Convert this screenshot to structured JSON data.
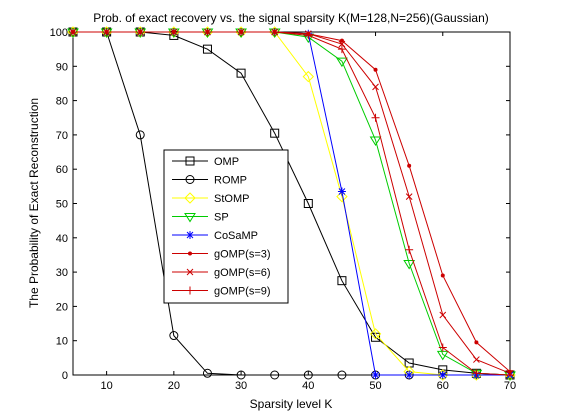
{
  "chart_data": {
    "type": "line",
    "title": "Prob. of exact recovery vs. the signal sparsity K(M=128,N=256)(Gaussian)",
    "xlabel": "Sparsity level K",
    "ylabel": "The Probability of Exact Reconstruction",
    "xlim": [
      5,
      70
    ],
    "ylim": [
      0,
      100
    ],
    "xticks": [
      10,
      20,
      30,
      40,
      50,
      60,
      70
    ],
    "yticks": [
      0,
      10,
      20,
      30,
      40,
      50,
      60,
      70,
      80,
      90,
      100
    ],
    "grid": false,
    "legend_position": "center-left",
    "x": [
      5,
      10,
      15,
      20,
      25,
      30,
      35,
      40,
      45,
      50,
      55,
      60,
      65,
      70
    ],
    "series": [
      {
        "name": "OMP",
        "color": "#000000",
        "marker": "square",
        "values": [
          100,
          100,
          100,
          99,
          95,
          88,
          70.5,
          50,
          27.5,
          11,
          3.5,
          1.5,
          0.5,
          0
        ]
      },
      {
        "name": "ROMP",
        "color": "#000000",
        "marker": "circle",
        "values": [
          100,
          100,
          70,
          11.5,
          0.5,
          0,
          0,
          0,
          0,
          0,
          0,
          0,
          0,
          0
        ]
      },
      {
        "name": "StOMP",
        "color": "#ffff00",
        "marker": "diamond",
        "values": [
          100,
          100,
          100,
          100,
          100,
          100,
          100,
          87,
          52,
          12,
          1,
          0,
          0,
          0
        ]
      },
      {
        "name": "SP",
        "color": "#00cc00",
        "marker": "triangle-down",
        "values": [
          100,
          100,
          100,
          100,
          100,
          100,
          100,
          98.5,
          91.5,
          68.5,
          32.5,
          6,
          0.5,
          0
        ]
      },
      {
        "name": "CoSaMP",
        "color": "#0000ff",
        "marker": "asterisk",
        "values": [
          100,
          100,
          100,
          100,
          100,
          100,
          100,
          99.5,
          53.5,
          0,
          0,
          0,
          0,
          0
        ]
      },
      {
        "name": "gOMP(s=3)",
        "color": "#cc0000",
        "marker": "dot",
        "values": [
          100,
          100,
          100,
          100,
          100,
          100,
          100,
          99.5,
          97.5,
          89,
          61,
          29,
          9.5,
          1
        ]
      },
      {
        "name": "gOMP(s=6)",
        "color": "#cc0000",
        "marker": "x",
        "values": [
          100,
          100,
          100,
          100,
          100,
          100,
          100,
          99.5,
          96.5,
          84,
          52,
          17.5,
          4.5,
          0.5
        ]
      },
      {
        "name": "gOMP(s=9)",
        "color": "#cc0000",
        "marker": "plus",
        "values": [
          100,
          100,
          100,
          100,
          100,
          100,
          100,
          99,
          95,
          75,
          36.5,
          8,
          0.5,
          0
        ]
      }
    ]
  }
}
